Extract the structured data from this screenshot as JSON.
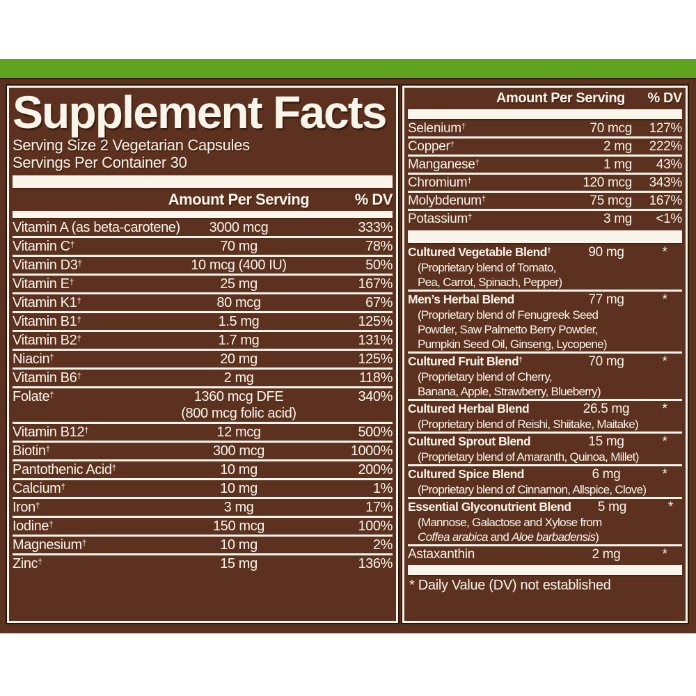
{
  "colors": {
    "green": "#60a41d",
    "brown": "#5c311f",
    "cream": "#f9f5ea",
    "dark": "#2c1507"
  },
  "header": {
    "title": "Supplement Facts",
    "serving_size": "Serving Size 2 Vegetarian Capsules",
    "servings_per_container": "Servings Per Container 30"
  },
  "left_table": {
    "col_amount": "Amount Per Serving",
    "col_dv": "% DV",
    "rows": [
      {
        "name": "Vitamin A (as beta-carotene)",
        "amount": "3000 mcg",
        "dv": "333%"
      },
      {
        "name": "Vitamin C†",
        "amount": "70 mg",
        "dv": "78%"
      },
      {
        "name": "Vitamin D3†",
        "amount": "10 mcg (400 IU)",
        "dv": "50%"
      },
      {
        "name": "Vitamin E†",
        "amount": "25 mg",
        "dv": "167%"
      },
      {
        "name": "Vitamin K1†",
        "amount": "80 mcg",
        "dv": "67%"
      },
      {
        "name": "Vitamin B1†",
        "amount": "1.5 mg",
        "dv": "125%"
      },
      {
        "name": "Vitamin B2†",
        "amount": "1.7 mg",
        "dv": "131%"
      },
      {
        "name": "Niacin†",
        "amount": "20 mg",
        "dv": "125%"
      },
      {
        "name": "Vitamin B6†",
        "amount": "2 mg",
        "dv": "118%"
      },
      {
        "name": "Folate†",
        "amount": "1360 mcg DFE\n(800 mcg folic acid)",
        "dv": "340%"
      },
      {
        "name": "Vitamin B12†",
        "amount": "12 mcg",
        "dv": "500%"
      },
      {
        "name": "Biotin†",
        "amount": "300 mcg",
        "dv": "1000%"
      },
      {
        "name": "Pantothenic Acid†",
        "amount": "10 mg",
        "dv": "200%"
      },
      {
        "name": "Calcium†",
        "amount": "10 mg",
        "dv": "1%"
      },
      {
        "name": "Iron†",
        "amount": "3 mg",
        "dv": "17%"
      },
      {
        "name": "Iodine†",
        "amount": "150 mcg",
        "dv": "100%"
      },
      {
        "name": "Magnesium†",
        "amount": "10 mg",
        "dv": "2%"
      },
      {
        "name": "Zinc†",
        "amount": "15 mg",
        "dv": "136%"
      }
    ]
  },
  "right_table": {
    "col_amount": "Amount Per Serving",
    "col_dv": "% DV",
    "rows": [
      {
        "name": "Selenium†",
        "amount": "70 mcg",
        "dv": "127%"
      },
      {
        "name": "Copper†",
        "amount": "2 mg",
        "dv": "222%"
      },
      {
        "name": "Manganese†",
        "amount": "1 mg",
        "dv": "43%"
      },
      {
        "name": "Chromium†",
        "amount": "120 mcg",
        "dv": "343%"
      },
      {
        "name": "Molybdenum†",
        "amount": "75 mcg",
        "dv": "167%"
      },
      {
        "name": "Potassium†",
        "amount": "3 mg",
        "dv": "<1%"
      }
    ]
  },
  "blends": [
    {
      "name": "Cultured Vegetable Blend†",
      "amount": "90 mg",
      "dv": "*",
      "details": "(Proprietary blend of Tomato,\nPea, Carrot, Spinach, Pepper)"
    },
    {
      "name": "Men’s Herbal Blend",
      "amount": "77 mg",
      "dv": "*",
      "details": "(Proprietary blend of Fenugreek Seed\nPowder, Saw Palmetto Berry Powder,\nPumpkin Seed Oil, Ginseng, Lycopene)"
    },
    {
      "name": "Cultured Fruit Blend†",
      "amount": "70 mg",
      "dv": "*",
      "details": "(Proprietary blend of Cherry,\nBanana, Apple, Strawberry, Blueberry)"
    },
    {
      "name": "Cultured Herbal Blend",
      "amount": "26.5 mg",
      "dv": "*",
      "details": "(Proprietary blend of Reishi, Shiitake, Maitake)"
    },
    {
      "name": "Cultured Sprout Blend",
      "amount": "15 mg",
      "dv": "*",
      "details": "(Proprietary blend of Amaranth, Quinoa, Millet)"
    },
    {
      "name": "Cultured Spice Blend",
      "amount": "6 mg",
      "dv": "*",
      "details": "(Proprietary blend of Cinnamon, Allspice, Clove)"
    },
    {
      "name": "Essential Glyconutrient Blend",
      "amount": "5 mg",
      "dv": "*",
      "details": "(Mannose, Galactose and Xylose from\n_Coffea arabica_ and _Aloe barbadensis_)"
    }
  ],
  "astaxanthin": {
    "name": "Astaxanthin",
    "amount": "2 mg",
    "dv": "*"
  },
  "footnote": "* Daily Value (DV) not established"
}
